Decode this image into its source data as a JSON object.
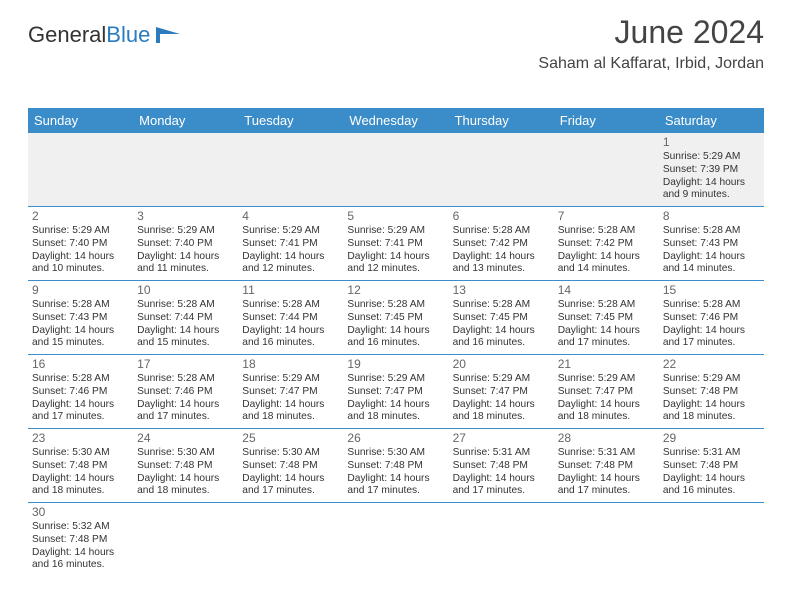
{
  "logo": {
    "part1": "General",
    "part2": "Blue"
  },
  "header": {
    "month": "June 2024",
    "location": "Saham al Kaffarat, Irbid, Jordan"
  },
  "colors": {
    "header_bg": "#3b8dc9",
    "header_text": "#ffffff",
    "border": "#3b8dc9",
    "firstrow_bg": "#f0f0f0",
    "text": "#333333"
  },
  "daynames": [
    "Sunday",
    "Monday",
    "Tuesday",
    "Wednesday",
    "Thursday",
    "Friday",
    "Saturday"
  ],
  "weeks": [
    [
      null,
      null,
      null,
      null,
      null,
      null,
      {
        "d": "1",
        "sr": "Sunrise: 5:29 AM",
        "ss": "Sunset: 7:39 PM",
        "dl1": "Daylight: 14 hours",
        "dl2": "and 9 minutes."
      }
    ],
    [
      {
        "d": "2",
        "sr": "Sunrise: 5:29 AM",
        "ss": "Sunset: 7:40 PM",
        "dl1": "Daylight: 14 hours",
        "dl2": "and 10 minutes."
      },
      {
        "d": "3",
        "sr": "Sunrise: 5:29 AM",
        "ss": "Sunset: 7:40 PM",
        "dl1": "Daylight: 14 hours",
        "dl2": "and 11 minutes."
      },
      {
        "d": "4",
        "sr": "Sunrise: 5:29 AM",
        "ss": "Sunset: 7:41 PM",
        "dl1": "Daylight: 14 hours",
        "dl2": "and 12 minutes."
      },
      {
        "d": "5",
        "sr": "Sunrise: 5:29 AM",
        "ss": "Sunset: 7:41 PM",
        "dl1": "Daylight: 14 hours",
        "dl2": "and 12 minutes."
      },
      {
        "d": "6",
        "sr": "Sunrise: 5:28 AM",
        "ss": "Sunset: 7:42 PM",
        "dl1": "Daylight: 14 hours",
        "dl2": "and 13 minutes."
      },
      {
        "d": "7",
        "sr": "Sunrise: 5:28 AM",
        "ss": "Sunset: 7:42 PM",
        "dl1": "Daylight: 14 hours",
        "dl2": "and 14 minutes."
      },
      {
        "d": "8",
        "sr": "Sunrise: 5:28 AM",
        "ss": "Sunset: 7:43 PM",
        "dl1": "Daylight: 14 hours",
        "dl2": "and 14 minutes."
      }
    ],
    [
      {
        "d": "9",
        "sr": "Sunrise: 5:28 AM",
        "ss": "Sunset: 7:43 PM",
        "dl1": "Daylight: 14 hours",
        "dl2": "and 15 minutes."
      },
      {
        "d": "10",
        "sr": "Sunrise: 5:28 AM",
        "ss": "Sunset: 7:44 PM",
        "dl1": "Daylight: 14 hours",
        "dl2": "and 15 minutes."
      },
      {
        "d": "11",
        "sr": "Sunrise: 5:28 AM",
        "ss": "Sunset: 7:44 PM",
        "dl1": "Daylight: 14 hours",
        "dl2": "and 16 minutes."
      },
      {
        "d": "12",
        "sr": "Sunrise: 5:28 AM",
        "ss": "Sunset: 7:45 PM",
        "dl1": "Daylight: 14 hours",
        "dl2": "and 16 minutes."
      },
      {
        "d": "13",
        "sr": "Sunrise: 5:28 AM",
        "ss": "Sunset: 7:45 PM",
        "dl1": "Daylight: 14 hours",
        "dl2": "and 16 minutes."
      },
      {
        "d": "14",
        "sr": "Sunrise: 5:28 AM",
        "ss": "Sunset: 7:45 PM",
        "dl1": "Daylight: 14 hours",
        "dl2": "and 17 minutes."
      },
      {
        "d": "15",
        "sr": "Sunrise: 5:28 AM",
        "ss": "Sunset: 7:46 PM",
        "dl1": "Daylight: 14 hours",
        "dl2": "and 17 minutes."
      }
    ],
    [
      {
        "d": "16",
        "sr": "Sunrise: 5:28 AM",
        "ss": "Sunset: 7:46 PM",
        "dl1": "Daylight: 14 hours",
        "dl2": "and 17 minutes."
      },
      {
        "d": "17",
        "sr": "Sunrise: 5:28 AM",
        "ss": "Sunset: 7:46 PM",
        "dl1": "Daylight: 14 hours",
        "dl2": "and 17 minutes."
      },
      {
        "d": "18",
        "sr": "Sunrise: 5:29 AM",
        "ss": "Sunset: 7:47 PM",
        "dl1": "Daylight: 14 hours",
        "dl2": "and 18 minutes."
      },
      {
        "d": "19",
        "sr": "Sunrise: 5:29 AM",
        "ss": "Sunset: 7:47 PM",
        "dl1": "Daylight: 14 hours",
        "dl2": "and 18 minutes."
      },
      {
        "d": "20",
        "sr": "Sunrise: 5:29 AM",
        "ss": "Sunset: 7:47 PM",
        "dl1": "Daylight: 14 hours",
        "dl2": "and 18 minutes."
      },
      {
        "d": "21",
        "sr": "Sunrise: 5:29 AM",
        "ss": "Sunset: 7:47 PM",
        "dl1": "Daylight: 14 hours",
        "dl2": "and 18 minutes."
      },
      {
        "d": "22",
        "sr": "Sunrise: 5:29 AM",
        "ss": "Sunset: 7:48 PM",
        "dl1": "Daylight: 14 hours",
        "dl2": "and 18 minutes."
      }
    ],
    [
      {
        "d": "23",
        "sr": "Sunrise: 5:30 AM",
        "ss": "Sunset: 7:48 PM",
        "dl1": "Daylight: 14 hours",
        "dl2": "and 18 minutes."
      },
      {
        "d": "24",
        "sr": "Sunrise: 5:30 AM",
        "ss": "Sunset: 7:48 PM",
        "dl1": "Daylight: 14 hours",
        "dl2": "and 18 minutes."
      },
      {
        "d": "25",
        "sr": "Sunrise: 5:30 AM",
        "ss": "Sunset: 7:48 PM",
        "dl1": "Daylight: 14 hours",
        "dl2": "and 17 minutes."
      },
      {
        "d": "26",
        "sr": "Sunrise: 5:30 AM",
        "ss": "Sunset: 7:48 PM",
        "dl1": "Daylight: 14 hours",
        "dl2": "and 17 minutes."
      },
      {
        "d": "27",
        "sr": "Sunrise: 5:31 AM",
        "ss": "Sunset: 7:48 PM",
        "dl1": "Daylight: 14 hours",
        "dl2": "and 17 minutes."
      },
      {
        "d": "28",
        "sr": "Sunrise: 5:31 AM",
        "ss": "Sunset: 7:48 PM",
        "dl1": "Daylight: 14 hours",
        "dl2": "and 17 minutes."
      },
      {
        "d": "29",
        "sr": "Sunrise: 5:31 AM",
        "ss": "Sunset: 7:48 PM",
        "dl1": "Daylight: 14 hours",
        "dl2": "and 16 minutes."
      }
    ],
    [
      {
        "d": "30",
        "sr": "Sunrise: 5:32 AM",
        "ss": "Sunset: 7:48 PM",
        "dl1": "Daylight: 14 hours",
        "dl2": "and 16 minutes."
      },
      null,
      null,
      null,
      null,
      null,
      null
    ]
  ]
}
